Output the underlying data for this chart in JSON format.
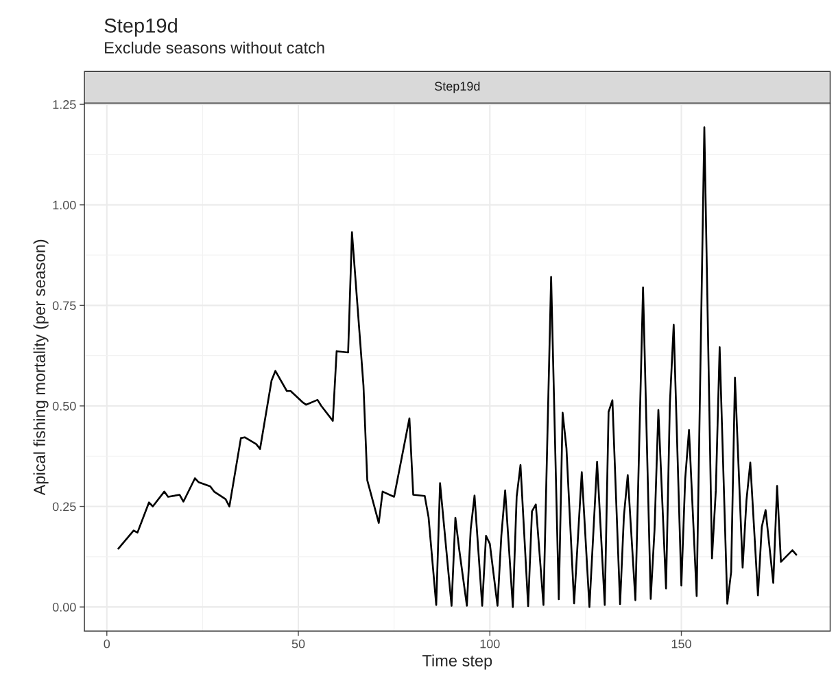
{
  "chart_data": {
    "type": "line",
    "title": "Step19d",
    "subtitle": "Exclude seasons without catch",
    "annotations": [
      "Step19d"
    ],
    "xlabel": "Time step",
    "ylabel": "Apical fishing mortality (per season)",
    "x": [
      3,
      7,
      8,
      11,
      12,
      15,
      16,
      19,
      20,
      23,
      24,
      27,
      28,
      31,
      32,
      35,
      36,
      39,
      40,
      43,
      44,
      47,
      48,
      51,
      52,
      55,
      56,
      59,
      60,
      63,
      64,
      67,
      68,
      71,
      72,
      75,
      79,
      80,
      83,
      84,
      86,
      87,
      90,
      91,
      92,
      94,
      95,
      96,
      98,
      99,
      100,
      102,
      103,
      104,
      106,
      107,
      108,
      110,
      111,
      112,
      114,
      116,
      118,
      119,
      120,
      122,
      124,
      126,
      128,
      130,
      131,
      132,
      134,
      135,
      136,
      138,
      140,
      142,
      143,
      144,
      146,
      147,
      148,
      150,
      151,
      152,
      154,
      156,
      158,
      159,
      160,
      162,
      163,
      164,
      166,
      167,
      168,
      170,
      171,
      172,
      174,
      175,
      176,
      179,
      180
    ],
    "series": [
      {
        "color": "#000000",
        "values": [
          0.145,
          0.19,
          0.185,
          0.26,
          0.25,
          0.287,
          0.274,
          0.279,
          0.262,
          0.32,
          0.31,
          0.3,
          0.287,
          0.268,
          0.25,
          0.42,
          0.422,
          0.405,
          0.393,
          0.563,
          0.587,
          0.537,
          0.537,
          0.51,
          0.503,
          0.515,
          0.5,
          0.463,
          0.636,
          0.633,
          0.932,
          0.551,
          0.315,
          0.209,
          0.287,
          0.274,
          0.469,
          0.279,
          0.276,
          0.223,
          0.005,
          0.308,
          0.003,
          0.222,
          0.143,
          0.003,
          0.193,
          0.277,
          0.003,
          0.177,
          0.157,
          0.003,
          0.177,
          0.29,
          0.0,
          0.274,
          0.353,
          0.002,
          0.238,
          0.255,
          0.005,
          0.821,
          0.019,
          0.483,
          0.395,
          0.009,
          0.335,
          0.0,
          0.361,
          0.005,
          0.485,
          0.514,
          0.007,
          0.226,
          0.328,
          0.017,
          0.795,
          0.02,
          0.192,
          0.49,
          0.046,
          0.505,
          0.702,
          0.053,
          0.318,
          0.44,
          0.027,
          1.193,
          0.121,
          0.289,
          0.646,
          0.008,
          0.087,
          0.57,
          0.098,
          0.265,
          0.359,
          0.029,
          0.199,
          0.241,
          0.06,
          0.301,
          0.112,
          0.141,
          0.13
        ]
      }
    ],
    "xlim": [
      -5.85,
      188.85
    ],
    "ylim": [
      -0.06,
      1.253
    ],
    "xticks": [
      0,
      50,
      100,
      150
    ],
    "yticks": [
      {
        "value": 0,
        "label": "0.00"
      },
      {
        "value": 0.25,
        "label": "0.25"
      },
      {
        "value": 0.5,
        "label": "0.50"
      },
      {
        "value": 0.75,
        "label": "0.75"
      },
      {
        "value": 1,
        "label": "1.00"
      },
      {
        "value": 1.25,
        "label": "1.25"
      }
    ],
    "grid": true,
    "line_style": "solid"
  }
}
